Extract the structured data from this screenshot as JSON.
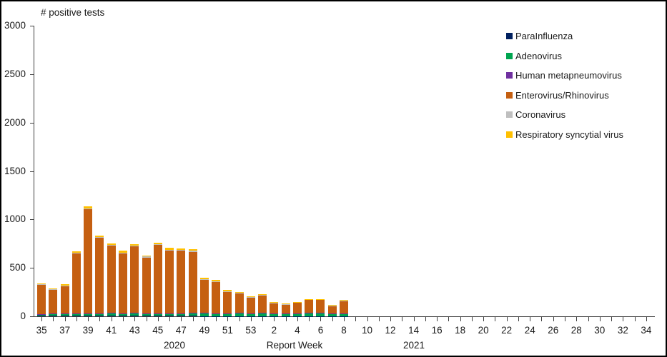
{
  "header": {
    "title": "# positive tests"
  },
  "axis": {
    "x_title": "Report Week",
    "year_2020": "2020",
    "year_2021": "2021"
  },
  "colors": {
    "axis": "#404040",
    "text": "#1a1a1a",
    "parainfluenza": "#002060",
    "adenovirus": "#00A550",
    "human_metapneumovirus": "#7030A0",
    "enterovirus_rhinovirus": "#C55F11",
    "coronavirus": "#BFBFBF",
    "respiratory_syncytial_virus": "#FFC000"
  },
  "chart_data": {
    "type": "bar",
    "subtype": "stacked",
    "title": "# positive tests",
    "xlabel": "Report Week",
    "ylabel": "",
    "ylim": [
      0,
      3000
    ],
    "yticks": [
      0,
      500,
      1000,
      1500,
      2000,
      2500,
      3000
    ],
    "grid": false,
    "legend_position": "right",
    "x_label_rule": "every other week labeled",
    "year_groups": [
      {
        "label": "2020",
        "weeks": "35-53"
      },
      {
        "label": "2021",
        "weeks": "1-34"
      }
    ],
    "categories": [
      "35",
      "36",
      "37",
      "38",
      "39",
      "40",
      "41",
      "42",
      "43",
      "44",
      "45",
      "46",
      "47",
      "48",
      "49",
      "50",
      "51",
      "52",
      "53",
      "1",
      "2",
      "3",
      "4",
      "5",
      "6",
      "7",
      "8",
      "9",
      "10",
      "11",
      "12",
      "13",
      "14",
      "15",
      "16",
      "17",
      "18",
      "19",
      "20",
      "21",
      "22",
      "23",
      "24",
      "25",
      "26",
      "27",
      "28",
      "29",
      "30",
      "31",
      "32",
      "33",
      "34"
    ],
    "series": [
      {
        "name": "ParaInfluenza",
        "color": "#002060",
        "values": [
          4,
          6,
          5,
          5,
          5,
          5,
          6,
          5,
          5,
          4,
          5,
          4,
          4,
          4,
          3,
          3,
          2,
          2,
          2,
          2,
          1,
          1,
          1,
          1,
          1,
          1,
          1,
          0,
          0,
          0,
          0,
          0,
          0,
          0,
          0,
          0,
          0,
          0,
          0,
          0,
          0,
          0,
          0,
          0,
          0,
          0,
          0,
          0,
          0,
          0,
          0,
          0,
          0
        ]
      },
      {
        "name": "Adenovirus",
        "color": "#00A550",
        "values": [
          18,
          20,
          18,
          25,
          22,
          20,
          25,
          22,
          25,
          20,
          22,
          20,
          22,
          25,
          28,
          25,
          25,
          28,
          25,
          30,
          25,
          22,
          25,
          28,
          30,
          22,
          25,
          0,
          0,
          0,
          0,
          0,
          0,
          0,
          0,
          0,
          0,
          0,
          0,
          0,
          0,
          0,
          0,
          0,
          0,
          0,
          0,
          0,
          0,
          0,
          0,
          0,
          0
        ]
      },
      {
        "name": "Human metapneumovirus",
        "color": "#7030A0",
        "values": [
          2,
          3,
          4,
          3,
          4,
          4,
          4,
          4,
          4,
          4,
          5,
          5,
          5,
          5,
          4,
          4,
          5,
          5,
          6,
          5,
          4,
          5,
          5,
          5,
          5,
          5,
          6,
          0,
          0,
          0,
          0,
          0,
          0,
          0,
          0,
          0,
          0,
          0,
          0,
          0,
          0,
          0,
          0,
          0,
          0,
          0,
          0,
          0,
          0,
          0,
          0,
          0,
          0
        ]
      },
      {
        "name": "Enterovirus/Rhinovirus",
        "color": "#C55F11",
        "values": [
          300,
          245,
          287,
          615,
          1075,
          780,
          695,
          620,
          685,
          580,
          702,
          650,
          645,
          632,
          340,
          323,
          220,
          199,
          163,
          175,
          103,
          95,
          107,
          134,
          132,
          76,
          126,
          0,
          0,
          0,
          0,
          0,
          0,
          0,
          0,
          0,
          0,
          0,
          0,
          0,
          0,
          0,
          0,
          0,
          0,
          0,
          0,
          0,
          0,
          0,
          0,
          0,
          0
        ]
      },
      {
        "name": "Coronavirus",
        "color": "#BFBFBF",
        "values": [
          6,
          6,
          6,
          7,
          9,
          8,
          8,
          8,
          9,
          8,
          10,
          10,
          9,
          9,
          8,
          8,
          8,
          7,
          6,
          6,
          6,
          6,
          6,
          6,
          6,
          5,
          6,
          0,
          0,
          0,
          0,
          0,
          0,
          0,
          0,
          0,
          0,
          0,
          0,
          0,
          0,
          0,
          0,
          0,
          0,
          0,
          0,
          0,
          0,
          0,
          0,
          0,
          0
        ]
      },
      {
        "name": "Respiratory syncytial virus",
        "color": "#FFC000",
        "values": [
          10,
          10,
          10,
          15,
          20,
          18,
          17,
          16,
          17,
          14,
          16,
          16,
          15,
          15,
          12,
          12,
          10,
          9,
          8,
          7,
          6,
          6,
          6,
          6,
          6,
          6,
          6,
          0,
          0,
          0,
          0,
          0,
          0,
          0,
          0,
          0,
          0,
          0,
          0,
          0,
          0,
          0,
          0,
          0,
          0,
          0,
          0,
          0,
          0,
          0,
          0,
          0,
          0
        ]
      }
    ]
  },
  "legend": {
    "items": [
      {
        "label": "ParaInfluenza",
        "color": "#002060"
      },
      {
        "label": "Adenovirus",
        "color": "#00A550"
      },
      {
        "label": "Human metapneumovirus",
        "color": "#7030A0"
      },
      {
        "label": "Enterovirus/Rhinovirus",
        "color": "#C55F11"
      },
      {
        "label": "Coronavirus",
        "color": "#BFBFBF"
      },
      {
        "label": "Respiratory syncytial virus",
        "color": "#FFC000"
      }
    ]
  }
}
